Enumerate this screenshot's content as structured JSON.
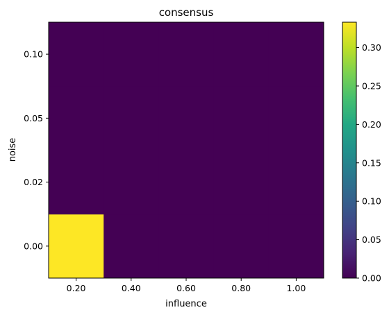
{
  "chart_data": {
    "type": "heatmap",
    "title": "consensus",
    "xlabel": "influence",
    "ylabel": "noise",
    "x_categories": [
      "0.20",
      "0.40",
      "0.60",
      "0.80",
      "1.00"
    ],
    "y_categories": [
      "0.00",
      "0.02",
      "0.05",
      "0.10"
    ],
    "values": [
      [
        0.333,
        0,
        0,
        0,
        0
      ],
      [
        0,
        0,
        0,
        0,
        0
      ],
      [
        0,
        0,
        0,
        0,
        0
      ],
      [
        0,
        0,
        0,
        0,
        0
      ]
    ],
    "colormap": "viridis",
    "vmin": 0,
    "vmax": 0.333,
    "colorbar_ticks": [
      "0.00",
      "0.05",
      "0.10",
      "0.15",
      "0.20",
      "0.25",
      "0.30"
    ],
    "colorbar_tick_values": [
      0,
      0.05,
      0.1,
      0.15,
      0.2,
      0.25,
      0.3
    ],
    "grid": false
  }
}
